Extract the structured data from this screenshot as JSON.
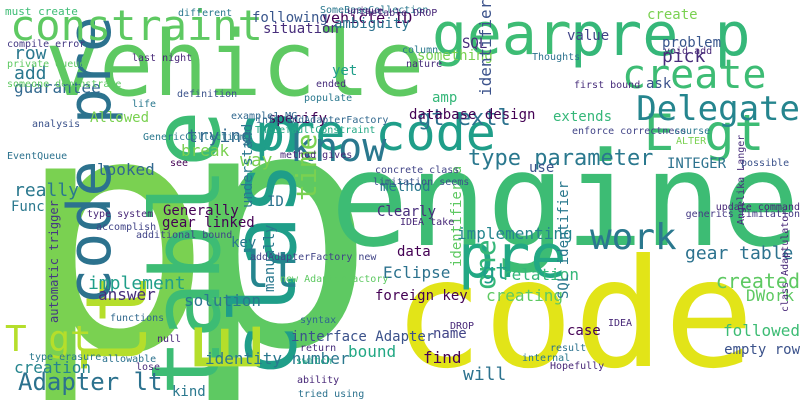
{
  "words": [
    {
      "text": "p",
      "color": "#7ad151"
    },
    {
      "text": "p",
      "color": "#5ec962"
    },
    {
      "text": "vehicle",
      "color": "#5ec962"
    },
    {
      "text": "code",
      "color": "#e2e418"
    },
    {
      "text": "engine",
      "color": "#3dbc74"
    },
    {
      "text": "class",
      "color": "#1f9e89"
    },
    {
      "text": "table",
      "color": "#3dbc74"
    },
    {
      "text": "lt",
      "color": "#b5de2b"
    },
    {
      "text": "E",
      "color": "#b5de2b"
    },
    {
      "text": "code pre",
      "color": "#2c728e"
    },
    {
      "text": "pre p",
      "color": "#35b779"
    },
    {
      "text": "gear",
      "color": "#3dbc74"
    },
    {
      "text": "constraint",
      "color": "#5ec962"
    },
    {
      "text": "pre code",
      "color": "#1f9e89"
    },
    {
      "text": "E gt",
      "color": "#3dbc74"
    },
    {
      "text": "pre",
      "color": "#22a884"
    },
    {
      "text": "create",
      "color": "#3dbc74"
    },
    {
      "text": "Delegate",
      "color": "#25858e"
    },
    {
      "text": "know",
      "color": "#2a788e"
    },
    {
      "text": "work",
      "color": "#2a788e"
    },
    {
      "text": "one",
      "color": "#35b779"
    },
    {
      "text": "lt",
      "color": "#25858e"
    },
    {
      "text": "T gt",
      "color": "#b5de2b"
    },
    {
      "text": "Adapter lt",
      "color": "#2c728e"
    },
    {
      "text": "type parameter",
      "color": "#2a788e"
    },
    {
      "text": "gt extl",
      "color": "#2c728e"
    },
    {
      "text": "vehicle ID",
      "color": "#440154"
    },
    {
      "text": "identity number",
      "color": "#2a788e"
    },
    {
      "text": "time",
      "color": "#7ad151"
    },
    {
      "text": "gear table",
      "color": "#2c728e"
    },
    {
      "text": "created",
      "color": "#5ec962"
    },
    {
      "text": "DWork",
      "color": "#5ec962"
    },
    {
      "text": "implement",
      "color": "#1f9e89"
    },
    {
      "text": "really",
      "color": "#2a788e"
    },
    {
      "text": "guarantee",
      "color": "#31688e"
    },
    {
      "text": "row",
      "color": "#2a788e"
    },
    {
      "text": "must create",
      "color": "#3dbc74"
    },
    {
      "text": "Allowed",
      "color": "#7ad151"
    },
    {
      "text": "problem",
      "color": "#39568c"
    },
    {
      "text": "trying",
      "color": "#31688e"
    },
    {
      "text": "specify",
      "color": "#440154"
    },
    {
      "text": "break",
      "color": "#7ad151"
    },
    {
      "text": "Generally",
      "color": "#440154"
    },
    {
      "text": "looked",
      "color": "#31688e"
    },
    {
      "text": "way",
      "color": "#7ad151"
    },
    {
      "text": "Clearly",
      "color": "#472d7b"
    },
    {
      "text": "method",
      "color": "#2a788e"
    },
    {
      "text": "implementing",
      "color": "#25858e"
    },
    {
      "text": "gt",
      "color": "#1f9e89"
    },
    {
      "text": "relation",
      "color": "#35b779"
    },
    {
      "text": "creating",
      "color": "#5ec962"
    },
    {
      "text": "foreign key",
      "color": "#440154"
    },
    {
      "text": "case",
      "color": "#440154"
    },
    {
      "text": "find",
      "color": "#440154"
    },
    {
      "text": "will",
      "color": "#2c728e"
    },
    {
      "text": "bound",
      "color": "#22a884"
    },
    {
      "text": "name",
      "color": "#414487"
    },
    {
      "text": "followed",
      "color": "#3dbc74"
    },
    {
      "text": "empty row",
      "color": "#3b528b"
    },
    {
      "text": "Eclipse",
      "color": "#2c728e"
    },
    {
      "text": "solution",
      "color": "#2a788e"
    },
    {
      "text": "answer",
      "color": "#472d7b"
    },
    {
      "text": "creation",
      "color": "#25858e"
    },
    {
      "text": "kind",
      "color": "#2a788e"
    },
    {
      "text": "interface Adapter",
      "color": "#3b528b"
    },
    {
      "text": "add",
      "color": "#2a788e"
    },
    {
      "text": "create",
      "color": "#7ad151"
    },
    {
      "text": "data",
      "color": "#440154"
    },
    {
      "text": "key",
      "color": "#2a788e"
    },
    {
      "text": "ID",
      "color": "#2c728e"
    },
    {
      "text": "use",
      "color": "#3b528b"
    },
    {
      "text": "following",
      "color": "#39568c"
    },
    {
      "text": "situation",
      "color": "#472d7b"
    },
    {
      "text": "ambiguity",
      "color": "#2c728e"
    },
    {
      "text": "something",
      "color": "#7ad151"
    },
    {
      "text": "ask",
      "color": "#3b528b"
    },
    {
      "text": "pick",
      "color": "#472d7b"
    },
    {
      "text": "value",
      "color": "#414487"
    },
    {
      "text": "database design",
      "color": "#440154"
    },
    {
      "text": "extends",
      "color": "#35b779"
    },
    {
      "text": "INTEGER",
      "color": "#2c728e"
    },
    {
      "text": "gear linked",
      "color": "#440154"
    },
    {
      "text": "yet",
      "color": "#1f9e89"
    },
    {
      "text": "amp",
      "color": "#35b779"
    },
    {
      "text": "SQL",
      "color": "#472d7b"
    },
    {
      "text": "identifier",
      "color": "#3b528b"
    },
    {
      "text": "identifier_a",
      "color": "#5ec962"
    },
    {
      "text": "manually",
      "color": "#2a788e"
    },
    {
      "text": "understand",
      "color": "#2a788e"
    },
    {
      "text": "automatic trigger",
      "color": "#443983"
    },
    {
      "text": "SQL identifier",
      "color": "#2a788e"
    },
    {
      "text": "first bound",
      "color": "#472d7b"
    },
    {
      "text": "Angelika Langer",
      "color": "#472d7b"
    },
    {
      "text": "class Adaptulator",
      "color": "#482878"
    },
    {
      "text": "compile error",
      "color": "#443983"
    },
    {
      "text": "private Queue",
      "color": "#5ec962"
    },
    {
      "text": "someone demonstrate",
      "color": "#5ec962"
    },
    {
      "text": "analysis",
      "color": "#3b528b"
    },
    {
      "text": "EventQueue",
      "color": "#2c728e"
    },
    {
      "text": "type system",
      "color": "#482878"
    },
    {
      "text": "accomplish",
      "color": "#414487"
    },
    {
      "text": "additional bound",
      "color": "#414487"
    },
    {
      "text": "functions",
      "color": "#31688e"
    },
    {
      "text": "allowable",
      "color": "#2c728e"
    },
    {
      "text": "void add",
      "color": "#482878"
    },
    {
      "text": "enforce correctness",
      "color": "#414487"
    },
    {
      "text": "update command",
      "color": "#482878"
    },
    {
      "text": "generics limitation",
      "color": "#443983"
    },
    {
      "text": "possible",
      "color": "#3b528b"
    },
    {
      "text": "concrete class",
      "color": "#414487"
    },
    {
      "text": "limitation seems",
      "color": "#3b528b"
    },
    {
      "text": "IDEA take",
      "color": "#482878"
    },
    {
      "text": "method gives",
      "color": "#482878"
    },
    {
      "text": "addAdapterFactory new",
      "color": "#414487"
    },
    {
      "text": "new AdapterFactory",
      "color": "#5ec962"
    },
    {
      "text": "GenericCollection",
      "color": "#2a788e"
    },
    {
      "text": "TheDefaultConstraint",
      "color": "#22a884"
    },
    {
      "text": "intl addAdapterFactory",
      "color": "#31688e"
    },
    {
      "text": "example1 MG",
      "color": "#31688e"
    },
    {
      "text": "syntax",
      "color": "#31688e"
    },
    {
      "text": "Hopefully",
      "color": "#482878"
    },
    {
      "text": "internal",
      "color": "#2a788e"
    },
    {
      "text": "result",
      "color": "#2c728e"
    },
    {
      "text": "DROP",
      "color": "#482878"
    },
    {
      "text": "IDEA",
      "color": "#482878"
    },
    {
      "text": "tried using",
      "color": "#2c728e"
    },
    {
      "text": "ability",
      "color": "#482878"
    },
    {
      "text": "switch",
      "color": "#22a884"
    },
    {
      "text": "return",
      "color": "#472d7b"
    },
    {
      "text": "populate",
      "color": "#2a788e"
    },
    {
      "text": "ended",
      "color": "#472d7b"
    },
    {
      "text": "SomeBaseCollection",
      "color": "#2a788e"
    },
    {
      "text": "unique",
      "color": "#482878"
    },
    {
      "text": "TheTable DROP",
      "color": "#482878"
    },
    {
      "text": "different",
      "color": "#2a788e"
    },
    {
      "text": "definition",
      "color": "#3b528b"
    },
    {
      "text": "life",
      "color": "#2a788e"
    },
    {
      "text": "see",
      "color": "#440154"
    },
    {
      "text": "Func",
      "color": "#2a788e"
    },
    {
      "text": "null",
      "color": "#482878"
    },
    {
      "text": "type erasure",
      "color": "#2a788e"
    },
    {
      "text": "lose",
      "color": "#472d7b"
    },
    {
      "text": "last night",
      "color": "#482878"
    },
    {
      "text": "Thoughts",
      "color": "#2c728e"
    },
    {
      "text": "ALTER",
      "color": "#7ad151"
    },
    {
      "text": "course",
      "color": "#2a788e"
    },
    {
      "text": "column",
      "color": "#2a788e"
    },
    {
      "text": "nature",
      "color": "#472d7b"
    }
  ]
}
